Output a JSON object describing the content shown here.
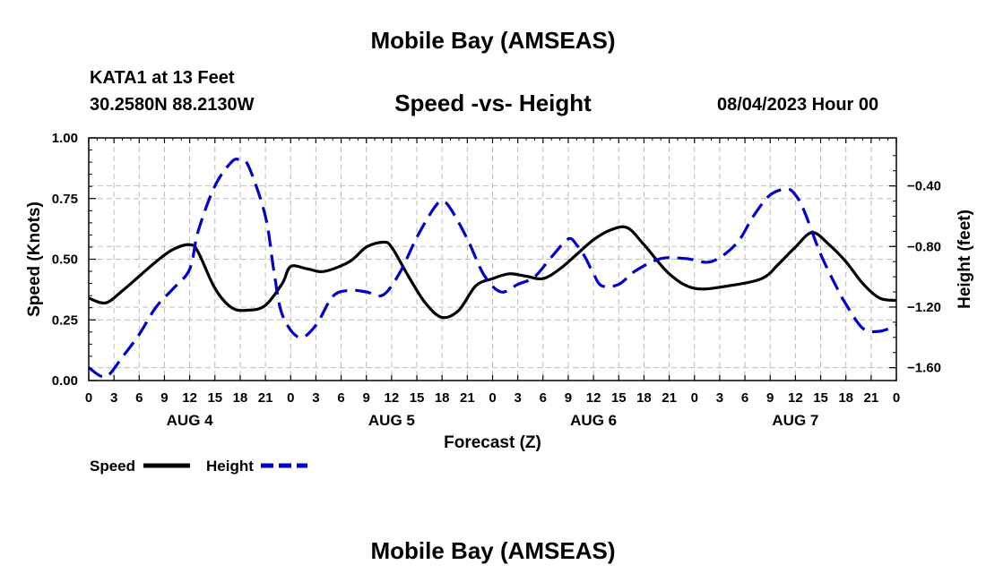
{
  "header": {
    "title": "Mobile Bay (AMSEAS)",
    "station": "KATA1 at 13 Feet",
    "coords": "30.2580N  88.2130W",
    "chart_title": "Speed -vs- Height",
    "timestamp": "08/04/2023 Hour 00"
  },
  "footer": {
    "title": "Mobile Bay (AMSEAS)"
  },
  "legend": {
    "speed_label": "Speed",
    "height_label": "Height"
  },
  "colors": {
    "speed": "#000000",
    "height": "#0000cc",
    "grid": "#bbbbbb"
  },
  "chart_data": {
    "type": "line",
    "title": "Speed -vs- Height",
    "xlabel": "Forecast (Z)",
    "ylabel": "Speed (Knots)",
    "y2label": "Height (feet)",
    "x_hour_range": [
      0,
      96
    ],
    "x_tick_labels": [
      "0",
      "3",
      "6",
      "9",
      "12",
      "15",
      "18",
      "21",
      "0",
      "3",
      "6",
      "9",
      "12",
      "15",
      "18",
      "21",
      "0",
      "3",
      "6",
      "9",
      "12",
      "15",
      "18",
      "21",
      "0",
      "3",
      "6",
      "9",
      "12",
      "15",
      "18",
      "21",
      "0"
    ],
    "day_labels": [
      "AUG 4",
      "AUG 5",
      "AUG 6",
      "AUG 7"
    ],
    "ylim": [
      0,
      1.0
    ],
    "y_ticks": [
      0,
      0.25,
      0.5,
      0.75,
      1.0
    ],
    "y_tick_labels": [
      "0.00",
      "0.25",
      "0.50",
      "0.75",
      "1.00"
    ],
    "y2lim": [
      -1.685,
      -0.083
    ],
    "y2_ticks": [
      -1.6,
      -1.2,
      -0.8,
      -0.4
    ],
    "y2_tick_labels": [
      "−1.60",
      "−1.20",
      "−0.80",
      "−0.40"
    ],
    "series": [
      {
        "name": "Speed",
        "axis": "left",
        "style": "solid",
        "x": [
          0,
          2,
          4,
          6,
          8,
          10,
          12,
          13,
          15,
          17,
          19,
          21,
          23,
          24,
          26,
          28,
          31,
          33,
          35,
          36,
          38,
          40,
          42,
          44,
          46,
          48,
          50,
          52,
          54,
          56,
          58,
          60,
          62,
          64,
          66,
          69,
          72,
          76,
          80,
          82,
          84,
          86,
          88,
          90,
          92,
          94,
          96
        ],
        "values": [
          0.34,
          0.32,
          0.37,
          0.43,
          0.49,
          0.54,
          0.56,
          0.53,
          0.38,
          0.3,
          0.29,
          0.31,
          0.4,
          0.47,
          0.46,
          0.45,
          0.49,
          0.55,
          0.57,
          0.55,
          0.43,
          0.32,
          0.26,
          0.29,
          0.39,
          0.42,
          0.44,
          0.43,
          0.42,
          0.46,
          0.52,
          0.58,
          0.62,
          0.63,
          0.56,
          0.44,
          0.38,
          0.39,
          0.42,
          0.48,
          0.55,
          0.61,
          0.56,
          0.49,
          0.4,
          0.34,
          0.33
        ]
      },
      {
        "name": "Height",
        "axis": "right",
        "style": "dashed",
        "x": [
          0,
          2,
          4,
          6,
          8,
          10,
          12,
          13,
          15,
          17,
          18,
          19,
          21,
          22,
          23,
          25,
          27,
          29,
          31,
          33,
          35,
          37,
          39,
          41,
          42,
          43,
          45,
          47,
          49,
          51,
          53,
          55,
          57,
          58,
          59,
          60,
          61,
          63,
          65,
          68,
          71,
          74,
          77,
          79,
          81,
          83,
          84,
          85,
          87,
          89,
          90,
          92,
          94,
          96
        ],
        "values": [
          -1.6,
          -1.66,
          -1.53,
          -1.38,
          -1.2,
          -1.08,
          -0.95,
          -0.7,
          -0.4,
          -0.24,
          -0.23,
          -0.27,
          -0.6,
          -0.96,
          -1.25,
          -1.4,
          -1.32,
          -1.13,
          -1.09,
          -1.1,
          -1.12,
          -0.97,
          -0.74,
          -0.55,
          -0.5,
          -0.55,
          -0.75,
          -0.99,
          -1.1,
          -1.05,
          -1.0,
          -0.87,
          -0.75,
          -0.79,
          -0.87,
          -0.98,
          -1.06,
          -1.05,
          -0.96,
          -0.88,
          -0.88,
          -0.9,
          -0.78,
          -0.6,
          -0.46,
          -0.42,
          -0.46,
          -0.56,
          -0.85,
          -1.08,
          -1.18,
          -1.34,
          -1.36,
          -1.32
        ]
      }
    ]
  }
}
